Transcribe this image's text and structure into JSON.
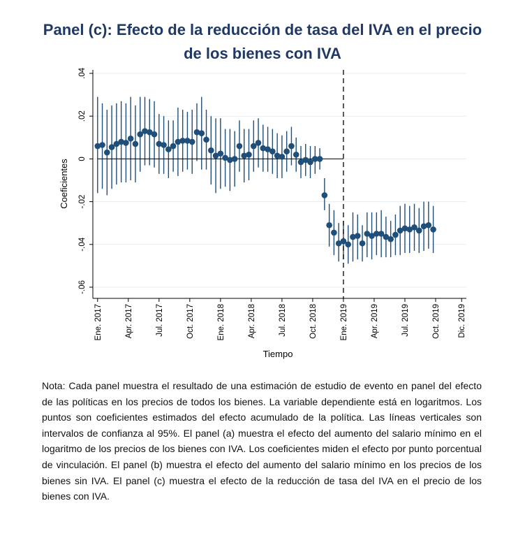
{
  "title": {
    "line1": "Panel (c): Efecto de la reducción de tasa del IVA en el precio",
    "line2": "de los bienes con IVA"
  },
  "note": "Nota: Cada panel muestra el resultado de una estimación de estudio de evento en panel del efecto de las políticas en los precios de todos los bienes. La variable dependiente está en logaritmos. Los puntos son coeficientes estimados del efecto acumulado de la política. Las líneas verticales son intervalos de confianza al 95%. El panel (a) muestra el efecto del aumento del salario mínimo en el logaritmo de los precios de los bienes con IVA. Los coeficientes miden el efecto por punto porcentual de vinculación. El panel (b) muestra el efecto del aumento del salario mínimo en los precios de los bienes sin IVA. El panel (c) muestra el efecto de la reducción de tasa del IVA en el precio de los bienes con IVA.",
  "colors": {
    "title": "#1f3864",
    "marker": "#1f4e79",
    "grid": "#e6ecf1"
  },
  "chart_data": {
    "type": "scatter",
    "subtype": "coefficient plot with 95% confidence intervals",
    "xlabel": "Tiempo",
    "ylabel": "Coeficientes",
    "ylim": [
      -0.06,
      0.04
    ],
    "yticks": [
      {
        "value": -0.06,
        "label": "-.06"
      },
      {
        "value": -0.04,
        "label": "-.04"
      },
      {
        "value": -0.02,
        "label": "-.02"
      },
      {
        "value": 0,
        "label": "0"
      },
      {
        "value": 0.02,
        "label": ".02"
      },
      {
        "value": 0.04,
        "label": ".04"
      }
    ],
    "xticks": [
      {
        "week": 0,
        "label": "Ene. 2017"
      },
      {
        "week": 13,
        "label": "Apr. 2017"
      },
      {
        "week": 26,
        "label": "Jul. 2017"
      },
      {
        "week": 39,
        "label": "Oct. 2017"
      },
      {
        "week": 52,
        "label": "Ene. 2018"
      },
      {
        "week": 65,
        "label": "Apr. 2018"
      },
      {
        "week": 78,
        "label": "Jul. 2018"
      },
      {
        "week": 91,
        "label": "Oct. 2018"
      },
      {
        "week": 104,
        "label": "Ene. 2019"
      },
      {
        "week": 117,
        "label": "Apr. 2019"
      },
      {
        "week": 130,
        "label": "Jul. 2019"
      },
      {
        "week": 143,
        "label": "Oct. 2019"
      },
      {
        "week": 154,
        "label": "Dic. 2019"
      }
    ],
    "event_line_week": 104,
    "horizontal_line": {
      "y": 0,
      "from_week": 0,
      "to_week": 104
    },
    "grid": true,
    "points": [
      {
        "x": 0,
        "y": 0.006,
        "lo": -0.016,
        "hi": 0.029
      },
      {
        "x": 2,
        "y": 0.0065,
        "lo": -0.014,
        "hi": 0.026
      },
      {
        "x": 4,
        "y": 0.003,
        "lo": -0.017,
        "hi": 0.023
      },
      {
        "x": 6,
        "y": 0.0055,
        "lo": -0.014,
        "hi": 0.025
      },
      {
        "x": 8,
        "y": 0.007,
        "lo": -0.012,
        "hi": 0.026
      },
      {
        "x": 10,
        "y": 0.008,
        "lo": -0.011,
        "hi": 0.027
      },
      {
        "x": 12,
        "y": 0.0075,
        "lo": -0.011,
        "hi": 0.026
      },
      {
        "x": 14,
        "y": 0.0095,
        "lo": -0.01,
        "hi": 0.029
      },
      {
        "x": 16,
        "y": 0.007,
        "lo": -0.011,
        "hi": 0.025
      },
      {
        "x": 18,
        "y": 0.0115,
        "lo": -0.006,
        "hi": 0.029
      },
      {
        "x": 20,
        "y": 0.013,
        "lo": -0.003,
        "hi": 0.029
      },
      {
        "x": 22,
        "y": 0.0125,
        "lo": -0.003,
        "hi": 0.028
      },
      {
        "x": 24,
        "y": 0.0115,
        "lo": -0.004,
        "hi": 0.027
      },
      {
        "x": 26,
        "y": 0.007,
        "lo": -0.007,
        "hi": 0.021
      },
      {
        "x": 28,
        "y": 0.0065,
        "lo": -0.007,
        "hi": 0.02
      },
      {
        "x": 30,
        "y": 0.0045,
        "lo": -0.009,
        "hi": 0.018
      },
      {
        "x": 32,
        "y": 0.006,
        "lo": -0.006,
        "hi": 0.018
      },
      {
        "x": 34,
        "y": 0.008,
        "lo": -0.008,
        "hi": 0.024
      },
      {
        "x": 36,
        "y": 0.0085,
        "lo": -0.006,
        "hi": 0.023
      },
      {
        "x": 38,
        "y": 0.0085,
        "lo": -0.005,
        "hi": 0.022
      },
      {
        "x": 40,
        "y": 0.008,
        "lo": -0.007,
        "hi": 0.023
      },
      {
        "x": 42,
        "y": 0.0125,
        "lo": -0.001,
        "hi": 0.026
      },
      {
        "x": 44,
        "y": 0.012,
        "lo": -0.005,
        "hi": 0.029
      },
      {
        "x": 46,
        "y": 0.009,
        "lo": -0.005,
        "hi": 0.023
      },
      {
        "x": 48,
        "y": 0.004,
        "lo": -0.012,
        "hi": 0.02
      },
      {
        "x": 50,
        "y": 0.0015,
        "lo": -0.016,
        "hi": 0.019
      },
      {
        "x": 52,
        "y": 0.0025,
        "lo": -0.014,
        "hi": 0.019
      },
      {
        "x": 54,
        "y": 0.0005,
        "lo": -0.013,
        "hi": 0.014
      },
      {
        "x": 56,
        "y": -0.0005,
        "lo": -0.015,
        "hi": 0.014
      },
      {
        "x": 58,
        "y": 0.0,
        "lo": -0.013,
        "hi": 0.013
      },
      {
        "x": 60,
        "y": 0.006,
        "lo": -0.006,
        "hi": 0.018
      },
      {
        "x": 62,
        "y": 0.0015,
        "lo": -0.011,
        "hi": 0.014
      },
      {
        "x": 64,
        "y": 0.002,
        "lo": -0.01,
        "hi": 0.014
      },
      {
        "x": 66,
        "y": 0.006,
        "lo": -0.006,
        "hi": 0.018
      },
      {
        "x": 68,
        "y": 0.0075,
        "lo": -0.004,
        "hi": 0.019
      },
      {
        "x": 70,
        "y": 0.005,
        "lo": -0.006,
        "hi": 0.016
      },
      {
        "x": 72,
        "y": 0.0045,
        "lo": -0.006,
        "hi": 0.015
      },
      {
        "x": 74,
        "y": 0.0035,
        "lo": -0.007,
        "hi": 0.014
      },
      {
        "x": 76,
        "y": 0.0015,
        "lo": -0.009,
        "hi": 0.012
      },
      {
        "x": 78,
        "y": 0.001,
        "lo": -0.009,
        "hi": 0.011
      },
      {
        "x": 80,
        "y": 0.0035,
        "lo": -0.006,
        "hi": 0.013
      },
      {
        "x": 82,
        "y": 0.006,
        "lo": -0.003,
        "hi": 0.015
      },
      {
        "x": 84,
        "y": 0.002,
        "lo": -0.006,
        "hi": 0.01
      },
      {
        "x": 86,
        "y": -0.0015,
        "lo": -0.009,
        "hi": 0.006
      },
      {
        "x": 88,
        "y": -0.0005,
        "lo": -0.008,
        "hi": 0.007
      },
      {
        "x": 90,
        "y": -0.0015,
        "lo": -0.009,
        "hi": 0.006
      },
      {
        "x": 92,
        "y": 0.0,
        "lo": -0.007,
        "hi": 0.006
      },
      {
        "x": 94,
        "y": 0.0,
        "lo": -0.005,
        "hi": 0.005
      },
      {
        "x": 96,
        "y": -0.017,
        "lo": -0.024,
        "hi": -0.009
      },
      {
        "x": 98,
        "y": -0.031,
        "lo": -0.041,
        "hi": -0.021
      },
      {
        "x": 100,
        "y": -0.0345,
        "lo": -0.045,
        "hi": -0.024
      },
      {
        "x": 102,
        "y": -0.0395,
        "lo": -0.048,
        "hi": -0.03
      },
      {
        "x": 104,
        "y": -0.0385,
        "lo": -0.047,
        "hi": -0.029
      },
      {
        "x": 106,
        "y": -0.04,
        "lo": -0.049,
        "hi": -0.031
      },
      {
        "x": 108,
        "y": -0.0365,
        "lo": -0.048,
        "hi": -0.025
      },
      {
        "x": 110,
        "y": -0.036,
        "lo": -0.047,
        "hi": -0.026
      },
      {
        "x": 112,
        "y": -0.0395,
        "lo": -0.048,
        "hi": -0.031
      },
      {
        "x": 114,
        "y": -0.035,
        "lo": -0.046,
        "hi": -0.025
      },
      {
        "x": 116,
        "y": -0.036,
        "lo": -0.047,
        "hi": -0.025
      },
      {
        "x": 118,
        "y": -0.035,
        "lo": -0.045,
        "hi": -0.025
      },
      {
        "x": 120,
        "y": -0.035,
        "lo": -0.046,
        "hi": -0.024
      },
      {
        "x": 122,
        "y": -0.0365,
        "lo": -0.046,
        "hi": -0.027
      },
      {
        "x": 124,
        "y": -0.0375,
        "lo": -0.046,
        "hi": -0.029
      },
      {
        "x": 126,
        "y": -0.0355,
        "lo": -0.045,
        "hi": -0.026
      },
      {
        "x": 128,
        "y": -0.0335,
        "lo": -0.045,
        "hi": -0.022
      },
      {
        "x": 130,
        "y": -0.0325,
        "lo": -0.044,
        "hi": -0.021
      },
      {
        "x": 132,
        "y": -0.033,
        "lo": -0.044,
        "hi": -0.022
      },
      {
        "x": 134,
        "y": -0.032,
        "lo": -0.043,
        "hi": -0.021
      },
      {
        "x": 136,
        "y": -0.0335,
        "lo": -0.044,
        "hi": -0.023
      },
      {
        "x": 138,
        "y": -0.0315,
        "lo": -0.043,
        "hi": -0.02
      },
      {
        "x": 140,
        "y": -0.031,
        "lo": -0.042,
        "hi": -0.02
      },
      {
        "x": 142,
        "y": -0.033,
        "lo": -0.044,
        "hi": -0.022
      }
    ]
  }
}
